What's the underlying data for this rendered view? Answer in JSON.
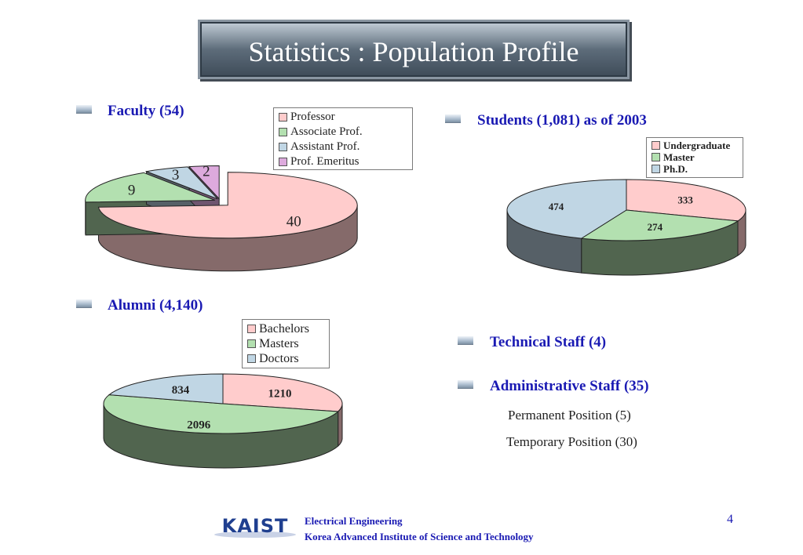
{
  "title": "Statistics : Population Profile",
  "page_number": "4",
  "footer": {
    "logo_text": "KAIST",
    "line1": "Electrical Engineering",
    "line2": "Korea Advanced Institute of Science and Technology"
  },
  "sections": {
    "faculty_heading": "Faculty (54)",
    "students_heading": "Students (1,081) as of 2003",
    "alumni_heading": "Alumni (4,140)",
    "technical_heading": "Technical Staff (4)",
    "admin_heading": "Administrative Staff (35)",
    "admin_permanent": "Permanent Position (5)",
    "admin_temporary": "Temporary Position (30)"
  },
  "colors": {
    "pink": "#ffcccc",
    "green": "#b3e0b0",
    "blue": "#c0d6e4",
    "purple": "#ddaadd",
    "heading_blue": "#1a1ab3"
  },
  "chart_data": [
    {
      "type": "pie",
      "title": "Faculty (54)",
      "categories": [
        "Professor",
        "Associate Prof.",
        "Assistant Prof.",
        "Prof. Emeritus"
      ],
      "values": [
        40,
        9,
        3,
        2
      ],
      "colors": [
        "#ffcccc",
        "#b3e0b0",
        "#c0d6e4",
        "#ddaadd"
      ],
      "legend": "top-right",
      "exploded": true
    },
    {
      "type": "pie",
      "title": "Students (1,081) as of 2003",
      "categories": [
        "Undergraduate",
        "Master",
        "Ph.D."
      ],
      "values": [
        333,
        274,
        474
      ],
      "colors": [
        "#ffcccc",
        "#b3e0b0",
        "#c0d6e4"
      ],
      "legend": "top-right"
    },
    {
      "type": "pie",
      "title": "Alumni (4,140)",
      "categories": [
        "Bachelors",
        "Masters",
        "Doctors"
      ],
      "values": [
        1210,
        2096,
        834
      ],
      "colors": [
        "#ffcccc",
        "#b3e0b0",
        "#c0d6e4"
      ],
      "legend": "top"
    }
  ]
}
